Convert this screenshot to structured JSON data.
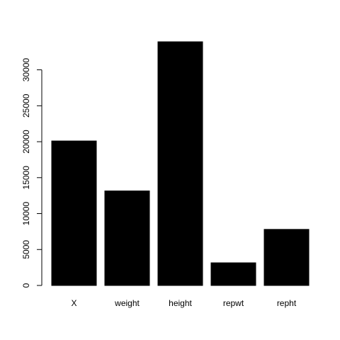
{
  "chart_data": {
    "type": "bar",
    "categories": [
      "X",
      "weight",
      "height",
      "repwt",
      "repht"
    ],
    "values": [
      20100,
      13150,
      33900,
      3150,
      7800
    ],
    "ylim": [
      0,
      33900
    ],
    "yticks": [
      0,
      5000,
      10000,
      15000,
      20000,
      25000,
      30000
    ],
    "ytick_labels": [
      "0",
      "5000",
      "10000",
      "15000",
      "20000",
      "25000",
      "30000"
    ],
    "bar_color": "#000000",
    "background": "#ffffff",
    "grid": false,
    "legend": "none",
    "title": "",
    "xlabel": "",
    "ylabel": ""
  }
}
